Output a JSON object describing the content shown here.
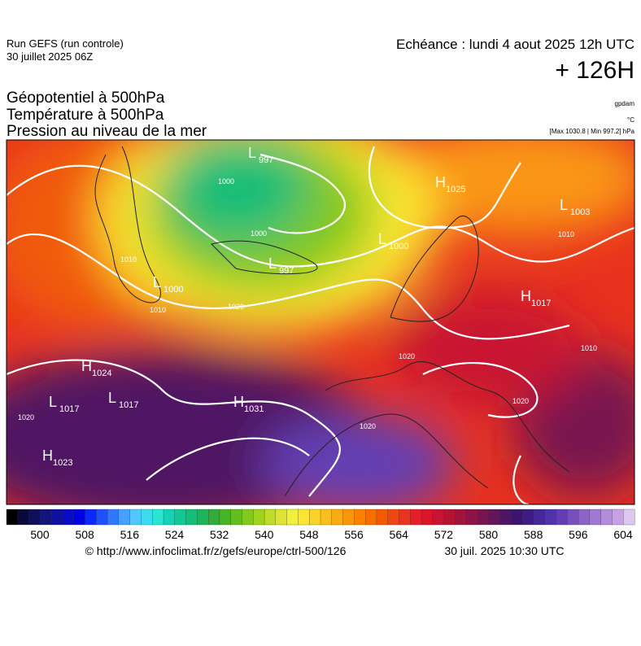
{
  "header": {
    "run": "Run GEFS (run controle)",
    "run_date": "30 juillet 2025 06Z",
    "valid": "Echéance : lundi 4 aout 2025 12h UTC",
    "lead": "+ 126H"
  },
  "legend": {
    "lines": [
      "Géopotentiel à 500hPa",
      "Température à 500hPa",
      "Pression au niveau de la mer"
    ],
    "unit_geo": "gpdam",
    "unit_temp": "°C",
    "range": "[Max 1030.8 | Min 997.2] hPa"
  },
  "centers": [
    {
      "letter": "L",
      "value": 997
    },
    {
      "letter": "H",
      "value": 1025
    },
    {
      "letter": "L",
      "value": 1003
    },
    {
      "letter": "L",
      "value": 1000
    },
    {
      "letter": "L",
      "value": 997
    },
    {
      "letter": "L",
      "value": 1000
    },
    {
      "letter": "H",
      "value": 1017
    },
    {
      "letter": "H",
      "value": 1024
    },
    {
      "letter": "L",
      "value": 1017
    },
    {
      "letter": "L",
      "value": 1017
    },
    {
      "letter": "H",
      "value": 1031
    },
    {
      "letter": "H",
      "value": 1023
    }
  ],
  "isobar_labels": [
    1000,
    1000,
    1010,
    1010,
    1020,
    1010,
    1010,
    1020,
    1020,
    1020,
    1020
  ],
  "colorbar": {
    "ticks": [
      500,
      508,
      516,
      524,
      532,
      540,
      548,
      556,
      564,
      572,
      580,
      588,
      596,
      604
    ],
    "colors": [
      "#000000",
      "#0a0a3a",
      "#10105a",
      "#14147a",
      "#1010a0",
      "#0a0ac8",
      "#0000e6",
      "#0a28ff",
      "#1e50ff",
      "#3278ff",
      "#46a0ff",
      "#50c8ff",
      "#3cdcf0",
      "#28e6d2",
      "#14d2b4",
      "#14c896",
      "#14be78",
      "#1eb45a",
      "#32aa3c",
      "#46b428",
      "#64be1e",
      "#82c81e",
      "#a0d21e",
      "#bedc28",
      "#dce632",
      "#f0f03c",
      "#fae632",
      "#fad228",
      "#fabe1e",
      "#faaa14",
      "#fa960a",
      "#fa8200",
      "#fa6e00",
      "#f55a00",
      "#f04614",
      "#eb321e",
      "#e61e28",
      "#dc1428",
      "#c81432",
      "#b41432",
      "#a0143c",
      "#8c1446",
      "#781450",
      "#64145a",
      "#501464",
      "#3c146e",
      "#3c1e82",
      "#462896",
      "#5032aa",
      "#643cb4",
      "#7850be",
      "#8c64c8",
      "#a078d2",
      "#b48cdc",
      "#c8a0e6",
      "#dcc8f0"
    ]
  },
  "footer": {
    "url": "© http://www.infoclimat.fr/z/gefs/europe/ctrl-500/126",
    "stamp": "30 juil. 2025 10:30 UTC"
  }
}
